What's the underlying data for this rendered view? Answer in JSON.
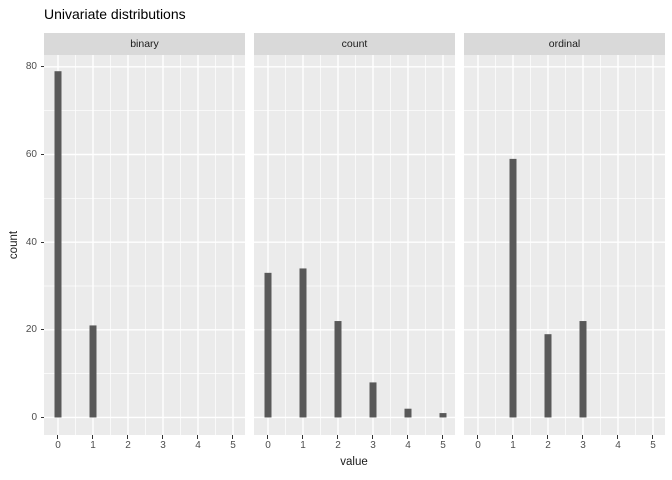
{
  "title": "Univariate distributions",
  "chart_data": {
    "type": "bar",
    "title": "Univariate distributions",
    "xlabel": "value",
    "ylabel": "count",
    "facet_variable_levels": [
      "binary",
      "count",
      "ordinal"
    ],
    "facets": [
      {
        "label": "binary",
        "bars": [
          {
            "x": 0,
            "count": 79
          },
          {
            "x": 1,
            "count": 21
          }
        ]
      },
      {
        "label": "count",
        "bars": [
          {
            "x": 0,
            "count": 33
          },
          {
            "x": 1,
            "count": 34
          },
          {
            "x": 2,
            "count": 22
          },
          {
            "x": 3,
            "count": 8
          },
          {
            "x": 4,
            "count": 2
          },
          {
            "x": 5,
            "count": 1
          }
        ]
      },
      {
        "label": "ordinal",
        "bars": [
          {
            "x": 1,
            "count": 59
          },
          {
            "x": 2,
            "count": 19
          },
          {
            "x": 3,
            "count": 22
          }
        ]
      }
    ],
    "x_ticks": [
      0,
      1,
      2,
      3,
      4,
      5
    ],
    "y_ticks": [
      0,
      20,
      40,
      60,
      80
    ],
    "y_minor_ticks": [
      10,
      30,
      50,
      70
    ],
    "x_minor_ticks": [
      0.5,
      1.5,
      2.5,
      3.5,
      4.5
    ],
    "xlim": [
      -0.4,
      5.343
    ],
    "ylim": [
      -4,
      82.7
    ],
    "grid": "major+minor",
    "legend_position": "none",
    "colors": {
      "bar": "#595959",
      "panel_background": "#ebebeb",
      "strip_background": "#d9d9d9",
      "gridline": "#ffffff",
      "axis_text": "#4d4d4d",
      "tick_mark": "#333333",
      "title_text": "#000000",
      "strip_text": "#1a1a1a"
    }
  }
}
